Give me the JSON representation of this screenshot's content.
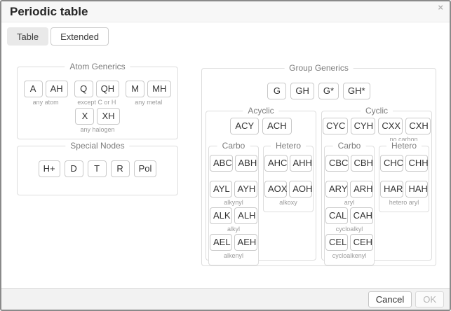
{
  "dialog": {
    "title": "Periodic table",
    "close_icon": "×"
  },
  "tabs": {
    "table": "Table",
    "extended": "Extended"
  },
  "atom_generics": {
    "legend": "Atom Generics",
    "row1": [
      {
        "b1": "A",
        "b2": "AH",
        "hint": "any atom"
      },
      {
        "b1": "Q",
        "b2": "QH",
        "hint": "except C or H"
      },
      {
        "b1": "M",
        "b2": "MH",
        "hint": "any metal"
      }
    ],
    "row2": {
      "b1": "X",
      "b2": "XH",
      "hint": "any halogen"
    }
  },
  "special_nodes": {
    "legend": "Special Nodes",
    "buttons": [
      "H+",
      "D",
      "T",
      "R",
      "Pol"
    ]
  },
  "group_generics": {
    "legend": "Group Generics",
    "top": [
      "G",
      "GH",
      "G*",
      "GH*"
    ],
    "acyclic": {
      "legend": "Acyclic",
      "top": [
        "ACY",
        "ACH"
      ],
      "carbo": {
        "legend": "Carbo",
        "rows": [
          {
            "b1": "ABC",
            "b2": "ABH"
          },
          {
            "b1": "AYL",
            "b2": "AYH",
            "hint": "alkynyl"
          },
          {
            "b1": "ALK",
            "b2": "ALH",
            "hint": "alkyl"
          },
          {
            "b1": "AEL",
            "b2": "AEH",
            "hint": "alkenyl"
          }
        ]
      },
      "hetero": {
        "legend": "Hetero",
        "rows": [
          {
            "b1": "AHC",
            "b2": "AHH"
          },
          {
            "b1": "AOX",
            "b2": "AOH",
            "hint": "alkoxy"
          }
        ]
      }
    },
    "cyclic": {
      "legend": "Cyclic",
      "top": [
        "CYC",
        "CYH",
        "CXX",
        "CXH"
      ],
      "top_hint": "no carbon",
      "carbo": {
        "legend": "Carbo",
        "rows": [
          {
            "b1": "CBC",
            "b2": "CBH"
          },
          {
            "b1": "ARY",
            "b2": "ARH",
            "hint": "aryl"
          },
          {
            "b1": "CAL",
            "b2": "CAH",
            "hint": "cycloalkyl"
          },
          {
            "b1": "CEL",
            "b2": "CEH",
            "hint": "cycloalkenyl"
          }
        ]
      },
      "hetero": {
        "legend": "Hetero",
        "rows": [
          {
            "b1": "CHC",
            "b2": "CHH"
          },
          {
            "b1": "HAR",
            "b2": "HAH",
            "hint": "hetero aryl"
          }
        ]
      }
    }
  },
  "footer": {
    "cancel": "Cancel",
    "ok": "OK"
  },
  "colors": {
    "dialog_border": "#8a8a8a",
    "header_bg": "#f7f7f7",
    "inactive_tab_bg": "#e9e9e9",
    "fieldset_border": "#dddddd",
    "chip_border": "#c9c9c9",
    "chip_text": "#333333",
    "hint_text": "#9b9b9b",
    "footer_bg": "#f2f2f2",
    "disabled_text": "#b5b5b5"
  }
}
